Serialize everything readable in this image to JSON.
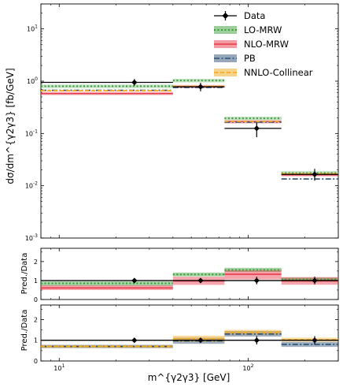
{
  "chart_data": {
    "type": "step",
    "xlabel": "m^{γ2γ3} [GeV]",
    "xscale": "log",
    "xlim": [
      8,
      300
    ],
    "bins": [
      [
        8,
        40
      ],
      [
        40,
        75
      ],
      [
        75,
        150
      ],
      [
        150,
        300
      ]
    ],
    "x_tick_labels": [
      "10^1",
      "10^2"
    ],
    "legend": {
      "placement": "top-right",
      "entries": [
        "Data",
        "LO-MRW",
        "NLO-MRW",
        "PB",
        "NNLO-Collinear"
      ]
    },
    "colors": {
      "Data": "#000000",
      "LO-MRW": "#3a9d3a",
      "NLO-MRW": "#e8394a",
      "PB": "#2b5073",
      "NNLO-Collinear": "#f2a81d"
    },
    "main_panel": {
      "ylabel": "dσ/dm^{γ2γ3} [fb/GeV]",
      "yscale": "log",
      "ylim": [
        0.001,
        30
      ],
      "y_tick_labels": [
        "10^-3",
        "10^-2",
        "10^-1",
        "10^0",
        "10^1"
      ],
      "data": {
        "x": [
          25,
          56,
          111,
          225
        ],
        "y": [
          0.95,
          0.78,
          0.125,
          0.0165
        ],
        "y_low": [
          0.82,
          0.64,
          0.085,
          0.0125
        ],
        "y_high": [
          1.1,
          0.93,
          0.165,
          0.021
        ]
      },
      "series": [
        {
          "name": "LO-MRW",
          "values": [
            0.8,
            1.03,
            0.195,
            0.0175
          ],
          "band_low": [
            0.74,
            0.95,
            0.18,
            0.016
          ],
          "band_high": [
            0.86,
            1.11,
            0.21,
            0.019
          ]
        },
        {
          "name": "NLO-MRW",
          "values": [
            0.58,
            0.79,
            0.168,
            0.0162
          ],
          "band_low": [
            0.54,
            0.73,
            0.155,
            0.015
          ],
          "band_high": [
            0.63,
            0.85,
            0.18,
            0.0174
          ]
        },
        {
          "name": "PB",
          "values": [
            0.67,
            0.76,
            0.165,
            0.0135
          ]
        },
        {
          "name": "NNLO-Collinear",
          "values": [
            0.66,
            0.8,
            0.17,
            0.017
          ]
        },
        {
          "name": "Data",
          "values": [
            0.95,
            0.78,
            0.125,
            0.0165
          ]
        }
      ]
    },
    "ratio_panel_1": {
      "ylabel": "Pred./Data",
      "ylim": [
        0,
        2.7
      ],
      "y_tick_labels": [
        "0",
        "1",
        "2"
      ],
      "data": {
        "x": [
          25,
          56,
          111,
          225
        ],
        "y": [
          1.0,
          1.0,
          1.0,
          1.0
        ],
        "y_low": [
          0.93,
          0.88,
          0.8,
          0.8
        ],
        "y_high": [
          1.07,
          1.12,
          1.2,
          1.2
        ]
      },
      "series": [
        {
          "name": "LO-MRW",
          "values": [
            0.85,
            1.32,
            1.56,
            1.06
          ],
          "band_low": [
            0.72,
            1.22,
            1.45,
            0.97
          ],
          "band_high": [
            0.95,
            1.42,
            1.67,
            1.16
          ]
        },
        {
          "name": "NLO-MRW",
          "values": [
            0.61,
            0.98,
            1.33,
            0.98
          ],
          "band_low": [
            0.5,
            0.77,
            1.06,
            0.78
          ],
          "band_high": [
            0.75,
            1.2,
            1.56,
            1.18
          ]
        },
        {
          "name": "Data",
          "values": [
            1.0,
            1.0,
            1.0,
            1.0
          ]
        }
      ]
    },
    "ratio_panel_2": {
      "ylabel": "Pred./Data",
      "ylim": [
        0,
        2.7
      ],
      "y_tick_labels": [
        "0",
        "1",
        "2"
      ],
      "data": {
        "x": [
          25,
          56,
          111,
          225
        ],
        "y": [
          1.0,
          1.0,
          1.0,
          1.0
        ],
        "y_low": [
          0.93,
          0.88,
          0.8,
          0.8
        ],
        "y_high": [
          1.07,
          1.12,
          1.2,
          1.2
        ]
      },
      "series": [
        {
          "name": "PB",
          "values": [
            0.7,
            0.97,
            1.3,
            0.8
          ],
          "band_low": [
            0.62,
            0.83,
            1.18,
            0.68
          ],
          "band_high": [
            0.78,
            1.12,
            1.44,
            0.92
          ]
        },
        {
          "name": "NNLO-Collinear",
          "values": [
            0.7,
            1.07,
            1.38,
            1.03
          ],
          "band_low": [
            0.64,
            0.92,
            1.27,
            0.93
          ],
          "band_high": [
            0.76,
            1.22,
            1.5,
            1.12
          ]
        },
        {
          "name": "Data",
          "values": [
            1.0,
            1.0,
            1.0,
            1.0
          ]
        }
      ]
    }
  }
}
